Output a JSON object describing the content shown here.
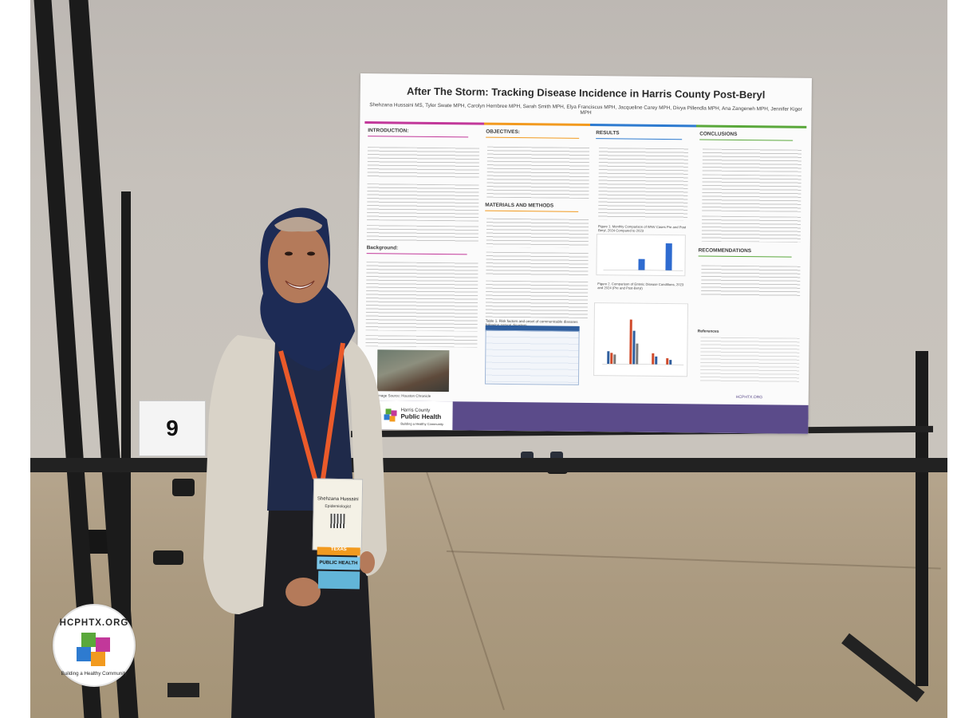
{
  "poster": {
    "title": "After The Storm: Tracking Disease Incidence in Harris County Post-Beryl",
    "authors": "Shehzana Hussaini MS, Tyler Swate MPH, Carolyn Hembree MPH, Sarah Smith MPH, Elya Franciscus MPH, Jacqueline Carey MPH, Divya Pillendla MPH, Ana Zangeneh MPH, Jennifer Kiger MPH",
    "sections": {
      "introduction": "INTRODUCTION:",
      "background": "Background:",
      "objectives": "OBJECTIVES:",
      "materials_methods": "MATERIALS AND METHODS",
      "results": "RESULTS",
      "conclusions": "CONCLUSIONS",
      "recommendations": "RECOMMENDATIONS",
      "references": "References"
    },
    "figure1_caption": "Figure 1. Monthly Comparison of WNV Cases Pre and Post Beryl, 2024 Compared to 2023",
    "figure2_caption": "Figure 2. Comparison of Enteric Disease Conditions, 2023 and 2024 (Pre and Post-Beryl)",
    "table1_caption": "Table 1. Risk factors and onset of communicable diseases following natural disasters",
    "image_caption": "Image Source: Houston Chronicle",
    "footer_org_line1": "Harris County",
    "footer_org_line2": "Public Health",
    "footer_tagline": "Building a Healthy Community",
    "footer_url": "HCPHTX.ORG"
  },
  "booth_number": "9",
  "badge": {
    "name": "Shehzana Hussaini",
    "role": "Epidemiologist",
    "ribbon_top": "TEXAS",
    "ribbon_bottom": "PUBLIC HEALTH"
  },
  "logo": {
    "top_text": "HCPHTX.ORG",
    "bottom_text": "Building a Healthy Community",
    "colors": [
      "#5aa83b",
      "#c2389a",
      "#2e7bd0",
      "#f29a1f"
    ]
  }
}
